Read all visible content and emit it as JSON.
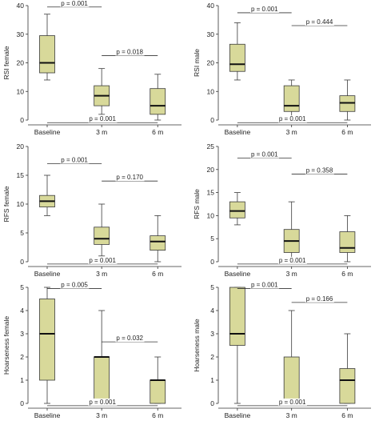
{
  "style": {
    "box_fill": "#d8d99a",
    "box_stroke": "#3a3a3a",
    "median_color": "#111111",
    "axis_color": "#333333"
  },
  "chart_data": [
    {
      "type": "box",
      "ylabel": "RSI female",
      "ylim": [
        0,
        40
      ],
      "yticks": [
        0,
        10,
        20,
        30,
        40
      ],
      "categories": [
        "Baseline",
        "3 m",
        "6 m"
      ],
      "boxes": [
        {
          "min": 14,
          "q1": 16.5,
          "median": 20,
          "q3": 29.5,
          "max": 37
        },
        {
          "min": 2,
          "q1": 5,
          "median": 8.5,
          "q3": 12,
          "max": 18
        },
        {
          "min": 0,
          "q1": 2,
          "median": 5,
          "q3": 11,
          "max": 16
        }
      ],
      "comparisons": [
        {
          "from": 0,
          "to": 1,
          "y": 39.5,
          "label": "p = 0.001"
        },
        {
          "from": 1,
          "to": 2,
          "y": 22.5,
          "label": "p = 0.018"
        },
        {
          "from": 0,
          "to": 2,
          "y": -0.9,
          "label": "p = 0.001"
        }
      ]
    },
    {
      "type": "box",
      "ylabel": "RSI male",
      "ylim": [
        0,
        40
      ],
      "yticks": [
        0,
        10,
        20,
        30,
        40
      ],
      "categories": [
        "Baseline",
        "3 m",
        "6 m"
      ],
      "boxes": [
        {
          "min": 14,
          "q1": 17,
          "median": 19.5,
          "q3": 26.5,
          "max": 34
        },
        {
          "min": 1,
          "q1": 3,
          "median": 5,
          "q3": 12,
          "max": 14
        },
        {
          "min": 0,
          "q1": 3,
          "median": 6,
          "q3": 8.5,
          "max": 14
        }
      ],
      "comparisons": [
        {
          "from": 0,
          "to": 1,
          "y": 37.5,
          "label": "p = 0.001"
        },
        {
          "from": 1,
          "to": 2,
          "y": 33,
          "label": "p = 0.444"
        },
        {
          "from": 0,
          "to": 2,
          "y": -0.9,
          "label": "p = 0.001"
        }
      ]
    },
    {
      "type": "box",
      "ylabel": "RFS female",
      "ylim": [
        0,
        20
      ],
      "yticks": [
        0,
        5,
        10,
        15,
        20
      ],
      "categories": [
        "Baseline",
        "3 m",
        "6 m"
      ],
      "boxes": [
        {
          "min": 8,
          "q1": 9.5,
          "median": 10.5,
          "q3": 11.5,
          "max": 15
        },
        {
          "min": 1,
          "q1": 3,
          "median": 4,
          "q3": 6,
          "max": 10
        },
        {
          "min": 0,
          "q1": 2,
          "median": 3.5,
          "q3": 4.5,
          "max": 8
        }
      ],
      "comparisons": [
        {
          "from": 0,
          "to": 1,
          "y": 17,
          "label": "p = 0.001"
        },
        {
          "from": 1,
          "to": 2,
          "y": 14,
          "label": "p = 0.170"
        },
        {
          "from": 0,
          "to": 2,
          "y": -0.4,
          "label": "p = 0.001"
        }
      ]
    },
    {
      "type": "box",
      "ylabel": "RFS male",
      "ylim": [
        0,
        25
      ],
      "yticks": [
        0,
        5,
        10,
        15,
        20,
        25
      ],
      "categories": [
        "Baseline",
        "3 m",
        "6 m"
      ],
      "boxes": [
        {
          "min": 8,
          "q1": 9.5,
          "median": 11,
          "q3": 13,
          "max": 15
        },
        {
          "min": 0,
          "q1": 2,
          "median": 4.5,
          "q3": 7,
          "max": 13
        },
        {
          "min": 0,
          "q1": 2,
          "median": 3,
          "q3": 6.5,
          "max": 10
        }
      ],
      "comparisons": [
        {
          "from": 0,
          "to": 1,
          "y": 22.5,
          "label": "p = 0.001"
        },
        {
          "from": 1,
          "to": 2,
          "y": 19,
          "label": "p = 0.358"
        },
        {
          "from": 0,
          "to": 2,
          "y": -0.5,
          "label": "p = 0.001"
        }
      ]
    },
    {
      "type": "box",
      "ylabel": "Hoarseness female",
      "ylim": [
        0,
        5
      ],
      "yticks": [
        0,
        1,
        2,
        3,
        4,
        5
      ],
      "categories": [
        "Baseline",
        "3 m",
        "6 m"
      ],
      "boxes": [
        {
          "min": 0,
          "q1": 1,
          "median": 3,
          "q3": 4.5,
          "max": 5
        },
        {
          "min": 0,
          "q1": 0,
          "median": 2,
          "q3": 2,
          "max": 4
        },
        {
          "min": 0,
          "q1": 0,
          "median": 1,
          "q3": 1,
          "max": 2
        }
      ],
      "comparisons": [
        {
          "from": 0,
          "to": 1,
          "y": 4.95,
          "label": "p = 0.005"
        },
        {
          "from": 1,
          "to": 2,
          "y": 2.65,
          "label": "p = 0.032"
        },
        {
          "from": 0,
          "to": 2,
          "y": -0.1,
          "label": "p = 0.001"
        }
      ]
    },
    {
      "type": "box",
      "ylabel": "Hoarseness male",
      "ylim": [
        0,
        5
      ],
      "yticks": [
        0,
        1,
        2,
        3,
        4,
        5
      ],
      "categories": [
        "Baseline",
        "3 m",
        "6 m"
      ],
      "boxes": [
        {
          "min": 0,
          "q1": 2.5,
          "median": 3,
          "q3": 5,
          "max": 5
        },
        {
          "min": 0,
          "q1": 0,
          "median": 0,
          "q3": 2,
          "max": 4
        },
        {
          "min": 0,
          "q1": 0,
          "median": 1,
          "q3": 1.5,
          "max": 3
        }
      ],
      "comparisons": [
        {
          "from": 0,
          "to": 1,
          "y": 4.95,
          "label": "p = 0.001"
        },
        {
          "from": 1,
          "to": 2,
          "y": 4.35,
          "label": "p = 0.166"
        },
        {
          "from": 0,
          "to": 2,
          "y": -0.1,
          "label": "p = 0.001"
        }
      ]
    }
  ]
}
